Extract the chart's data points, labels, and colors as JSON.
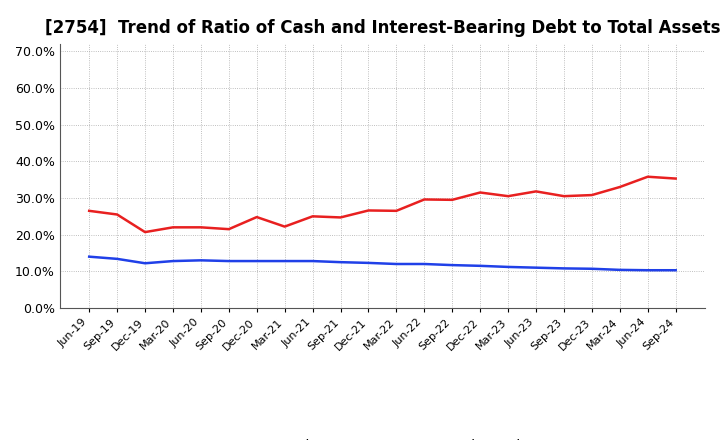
{
  "title": "[2754]  Trend of Ratio of Cash and Interest-Bearing Debt to Total Assets",
  "x_labels": [
    "Jun-19",
    "Sep-19",
    "Dec-19",
    "Mar-20",
    "Jun-20",
    "Sep-20",
    "Dec-20",
    "Mar-21",
    "Jun-21",
    "Sep-21",
    "Dec-21",
    "Mar-22",
    "Jun-22",
    "Sep-22",
    "Dec-22",
    "Mar-23",
    "Jun-23",
    "Sep-23",
    "Dec-23",
    "Mar-24",
    "Jun-24",
    "Sep-24"
  ],
  "cash": [
    0.265,
    0.255,
    0.207,
    0.22,
    0.22,
    0.215,
    0.248,
    0.222,
    0.25,
    0.247,
    0.266,
    0.265,
    0.296,
    0.295,
    0.315,
    0.305,
    0.318,
    0.305,
    0.308,
    0.33,
    0.358,
    0.353
  ],
  "debt": [
    0.14,
    0.134,
    0.122,
    0.128,
    0.13,
    0.128,
    0.128,
    0.128,
    0.128,
    0.125,
    0.123,
    0.12,
    0.12,
    0.117,
    0.115,
    0.112,
    0.11,
    0.108,
    0.107,
    0.104,
    0.103,
    0.103
  ],
  "cash_color": "#e82020",
  "debt_color": "#2040e8",
  "background_color": "#ffffff",
  "plot_bg_color": "#ffffff",
  "grid_color": "#aaaaaa",
  "ylim": [
    0.0,
    0.72
  ],
  "yticks": [
    0.0,
    0.1,
    0.2,
    0.3,
    0.4,
    0.5,
    0.6,
    0.7
  ],
  "ytick_labels": [
    "0.0%",
    "10.0%",
    "20.0%",
    "30.0%",
    "40.0%",
    "50.0%",
    "60.0%",
    "70.0%"
  ],
  "legend_cash": "Cash",
  "legend_debt": "Interest-Bearing Debt",
  "line_width": 1.8,
  "title_fontsize": 12,
  "tick_fontsize": 9,
  "xtick_fontsize": 8
}
